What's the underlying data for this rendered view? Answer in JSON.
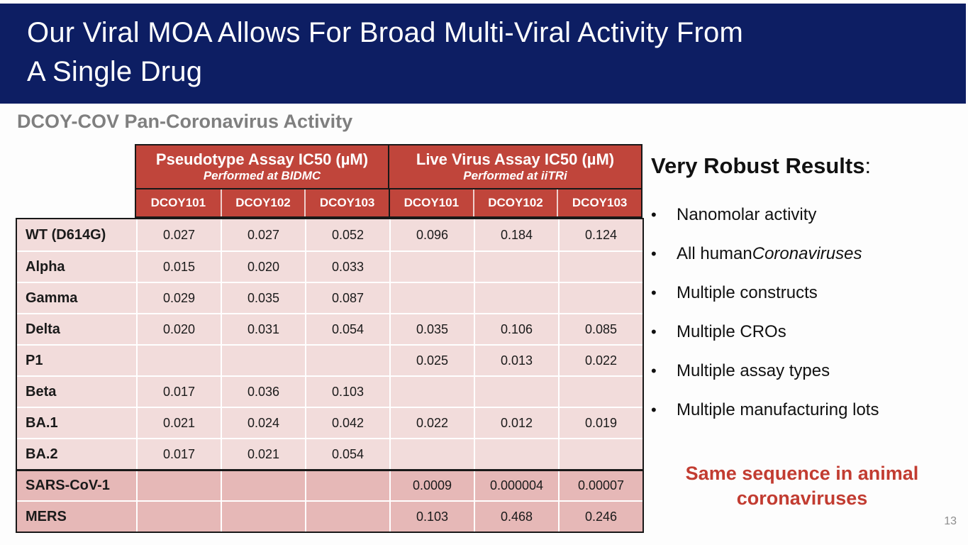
{
  "slide": {
    "title_lines": [
      "Our Viral MOA Allows For Broad Multi-Viral Activity From",
      "A Single Drug"
    ],
    "subtitle": "DCOY-COV Pan-Coronavirus Activity",
    "page_number": "13"
  },
  "colors": {
    "title_bar_bg": "#0D1E63",
    "table_header_bg": "#C0453B",
    "row_light_bg": "#F2DCDB",
    "row_dark_bg": "#E6B8B7",
    "accent_red_text": "#C23C31",
    "subtitle_gray": "#7F7F7F"
  },
  "table": {
    "groups": [
      {
        "title": "Pseudotype Assay IC50 (µM)",
        "subtitle": "Performed at BIDMC"
      },
      {
        "title": "Live Virus Assay IC50 (µM)",
        "subtitle": "Performed at iiTRi"
      }
    ],
    "drug_headers": [
      "DCOY101",
      "DCOY102",
      "DCOY103",
      "DCOY101",
      "DCOY102",
      "DCOY103"
    ],
    "rows": [
      {
        "label": "WT (D614G)",
        "variant": "light",
        "values": [
          "0.027",
          "0.027",
          "0.052",
          "0.096",
          "0.184",
          "0.124"
        ]
      },
      {
        "label": "Alpha",
        "variant": "light",
        "values": [
          "0.015",
          "0.020",
          "0.033",
          "",
          "",
          ""
        ]
      },
      {
        "label": "Gamma",
        "variant": "light",
        "values": [
          "0.029",
          "0.035",
          "0.087",
          "",
          "",
          ""
        ]
      },
      {
        "label": "Delta",
        "variant": "light",
        "values": [
          "0.020",
          "0.031",
          "0.054",
          "0.035",
          "0.106",
          "0.085"
        ]
      },
      {
        "label": "P1",
        "variant": "light",
        "values": [
          "",
          "",
          "",
          "0.025",
          "0.013",
          "0.022"
        ]
      },
      {
        "label": "Beta",
        "variant": "light",
        "values": [
          "0.017",
          "0.036",
          "0.103",
          "",
          "",
          ""
        ]
      },
      {
        "label": "BA.1",
        "variant": "light",
        "values": [
          "0.021",
          "0.024",
          "0.042",
          "0.022",
          "0.012",
          "0.019"
        ]
      },
      {
        "label": "BA.2",
        "variant": "light",
        "values": [
          "0.017",
          "0.021",
          "0.054",
          "",
          "",
          ""
        ]
      },
      {
        "label": "SARS-CoV-1",
        "variant": "dark",
        "values": [
          "",
          "",
          "",
          "0.0009",
          "0.000004",
          "0.00007"
        ]
      },
      {
        "label": "MERS",
        "variant": "dark",
        "values": [
          "",
          "",
          "",
          "0.103",
          "0.468",
          "0.246"
        ]
      }
    ]
  },
  "right_panel": {
    "heading": "Very Robust Results",
    "heading_suffix": ":",
    "bullets": [
      {
        "text": "Nanomolar activity"
      },
      {
        "text": "All human ",
        "italic": "Coronaviruses"
      },
      {
        "text": "Multiple constructs"
      },
      {
        "text": "Multiple CROs"
      },
      {
        "text": "Multiple assay types"
      },
      {
        "text": "Multiple manufacturing lots"
      }
    ],
    "note": "Same sequence in animal coronaviruses"
  }
}
